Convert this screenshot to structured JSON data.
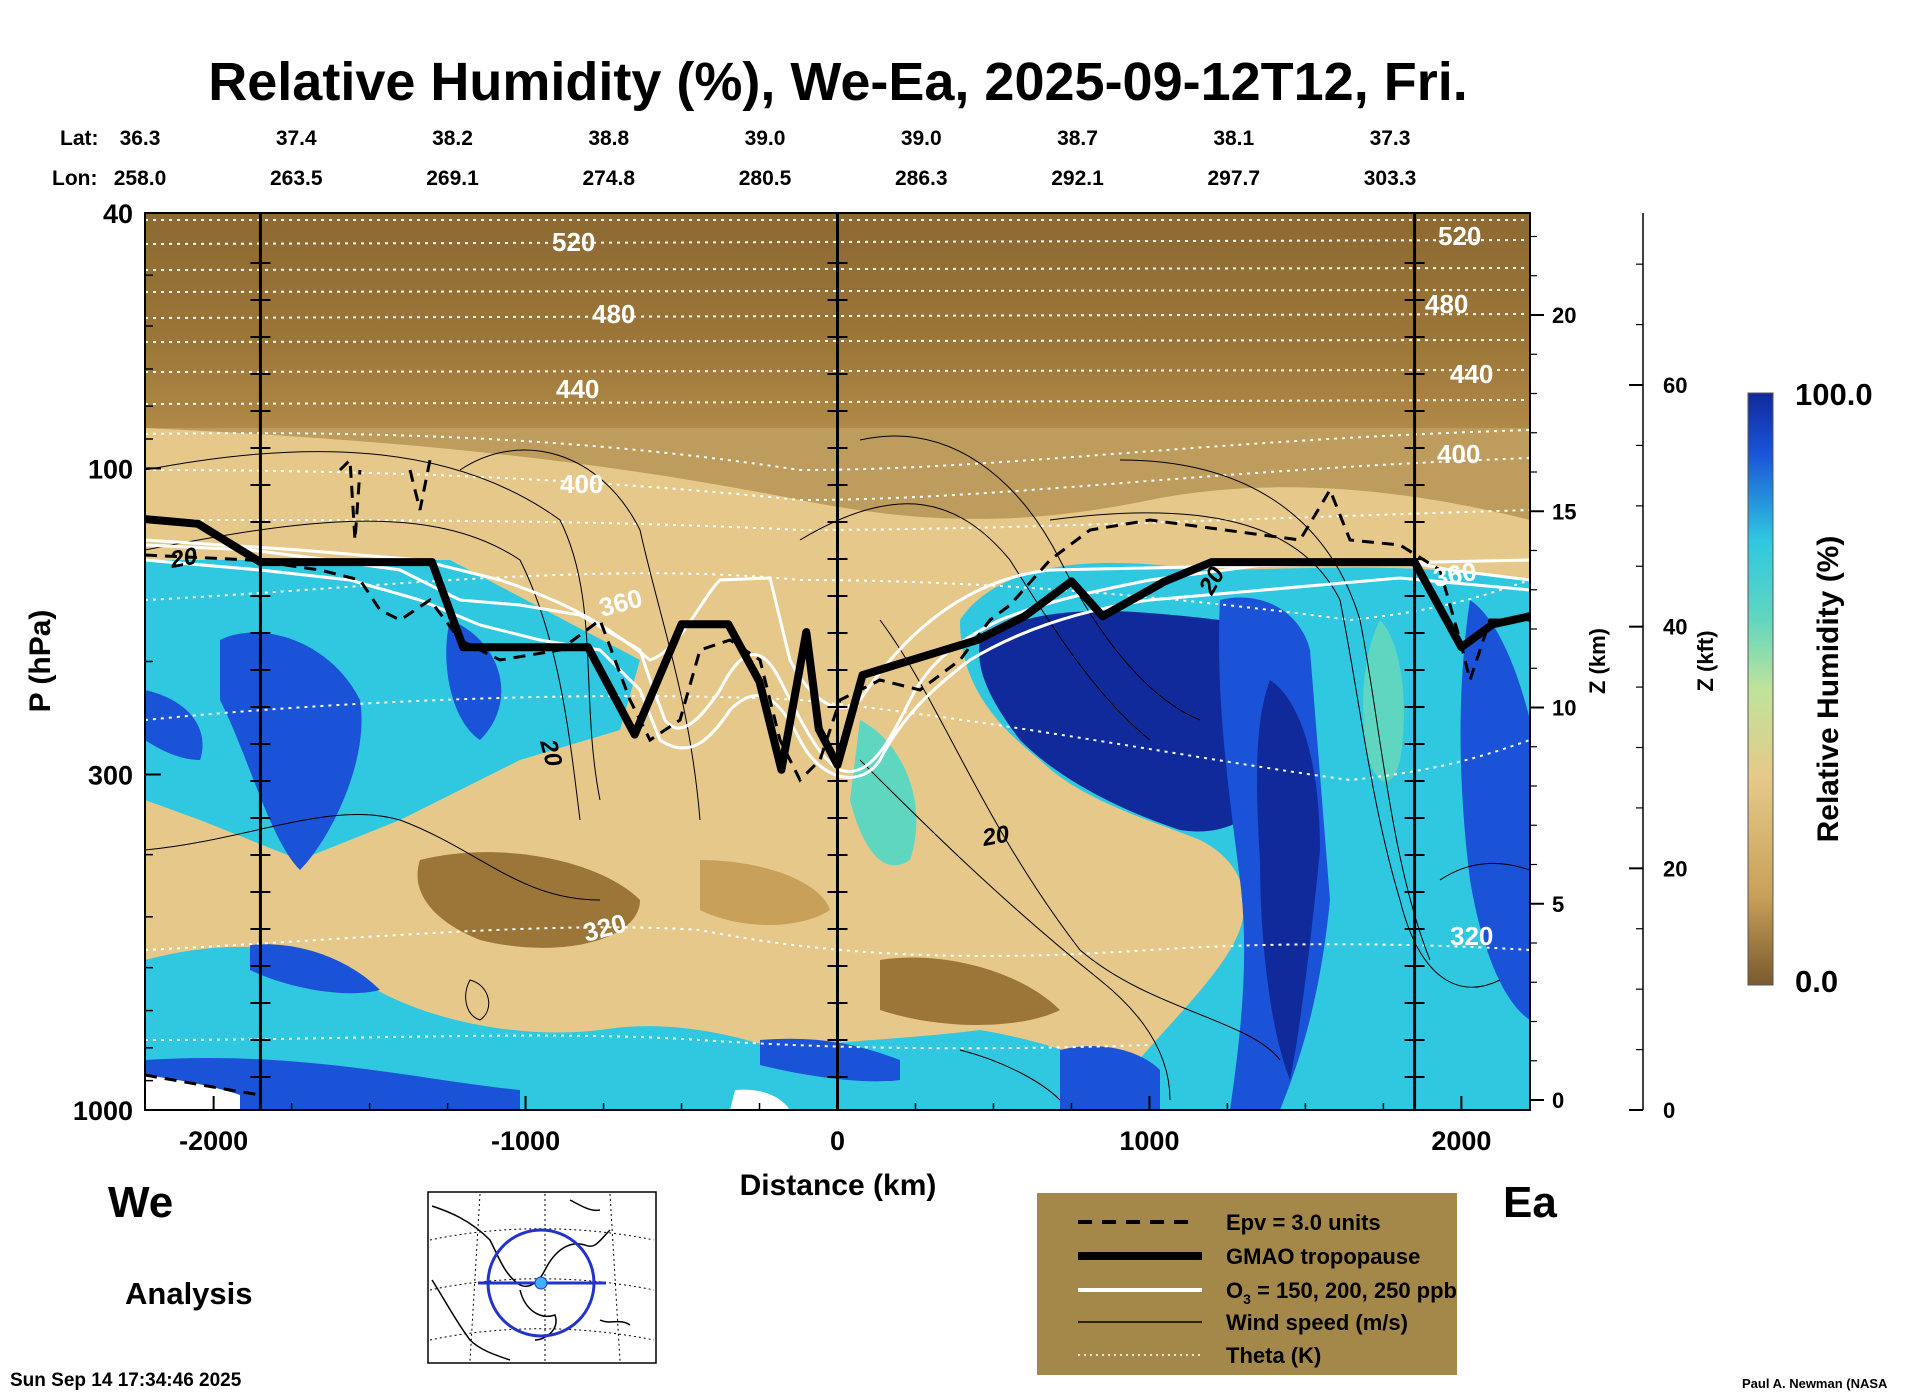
{
  "chart_data": {
    "type": "heatmap",
    "title": "Relative Humidity (%), We-Ea, 2025-09-12T12, Fri.",
    "xlabel": "Distance (km)",
    "ylabel": "P (hPa)",
    "z_km_label": "Z (km)",
    "z_kft_label": "Z (kft)",
    "colorbar_label": "Relative Humidity (%)",
    "colorbar_max": "100.0",
    "colorbar_min": "0.0",
    "x_ticks": [
      "-2000",
      "-1000",
      "0",
      "1000",
      "2000"
    ],
    "xlim": [
      -2220,
      2220
    ],
    "y_ticks": [
      "40",
      "100",
      "300",
      "1000"
    ],
    "ylim": [
      1000,
      40
    ],
    "y_scale": "log",
    "z_km_ticks": [
      "0",
      "5",
      "10",
      "15",
      "20"
    ],
    "z_kft_ticks": [
      "0",
      "20",
      "40",
      "60"
    ],
    "lat_label": "Lat:",
    "lon_label": "Lon:",
    "lat_values": [
      "36.3",
      "37.4",
      "38.2",
      "38.8",
      "39.0",
      "39.0",
      "38.7",
      "38.1",
      "37.3"
    ],
    "lon_values": [
      "258.0",
      "263.5",
      "269.1",
      "274.8",
      "280.5",
      "286.3",
      "292.1",
      "297.7",
      "303.3"
    ],
    "theta_labels": [
      "520",
      "480",
      "440",
      "400",
      "360",
      "320"
    ],
    "wind_labels": [
      "20"
    ],
    "series": [
      {
        "name": "GMAO tropopause",
        "x": [
          -2220,
          -2050,
          -1850,
          -1300,
          -1200,
          -1000,
          -800,
          -650,
          -500,
          -350,
          -250,
          -180,
          -100,
          -60,
          0,
          80,
          450,
          600,
          750,
          850,
          1050,
          1200,
          1500,
          1850,
          2000,
          2100,
          2220
        ],
        "p": [
          120,
          122,
          140,
          140,
          190,
          190,
          190,
          260,
          175,
          175,
          215,
          295,
          180,
          255,
          290,
          210,
          185,
          170,
          150,
          170,
          150,
          140,
          140,
          140,
          190,
          175,
          170
        ]
      }
    ]
  },
  "page": {
    "left_label": "We",
    "right_label": "Ea",
    "analysis_label": "Analysis",
    "timestamp": "Sun Sep 14 17:34:46 2025",
    "credit": "Paul A. Newman (NASA"
  },
  "legend": {
    "items": [
      {
        "key": "epv",
        "label": "Epv = 3.0 units"
      },
      {
        "key": "tropopause",
        "label": "GMAO tropopause"
      },
      {
        "key": "ozone_prefix",
        "label": "O"
      },
      {
        "key": "ozone_sub",
        "label": "3"
      },
      {
        "key": "ozone_suffix",
        "label": " = 150, 200, 250 ppb"
      },
      {
        "key": "wind",
        "label": "Wind speed (m/s)"
      },
      {
        "key": "theta",
        "label": "Theta (K)"
      }
    ]
  },
  "colors": {
    "legend_bg": "#a3884a",
    "dry_dark": "#7a5a2e",
    "dry": "#c8a05a",
    "mid": "#e6c98a",
    "moist": "#7fd0b8",
    "cyan": "#2fc8e0",
    "blue": "#1a52d8",
    "wet": "#102a9c"
  }
}
